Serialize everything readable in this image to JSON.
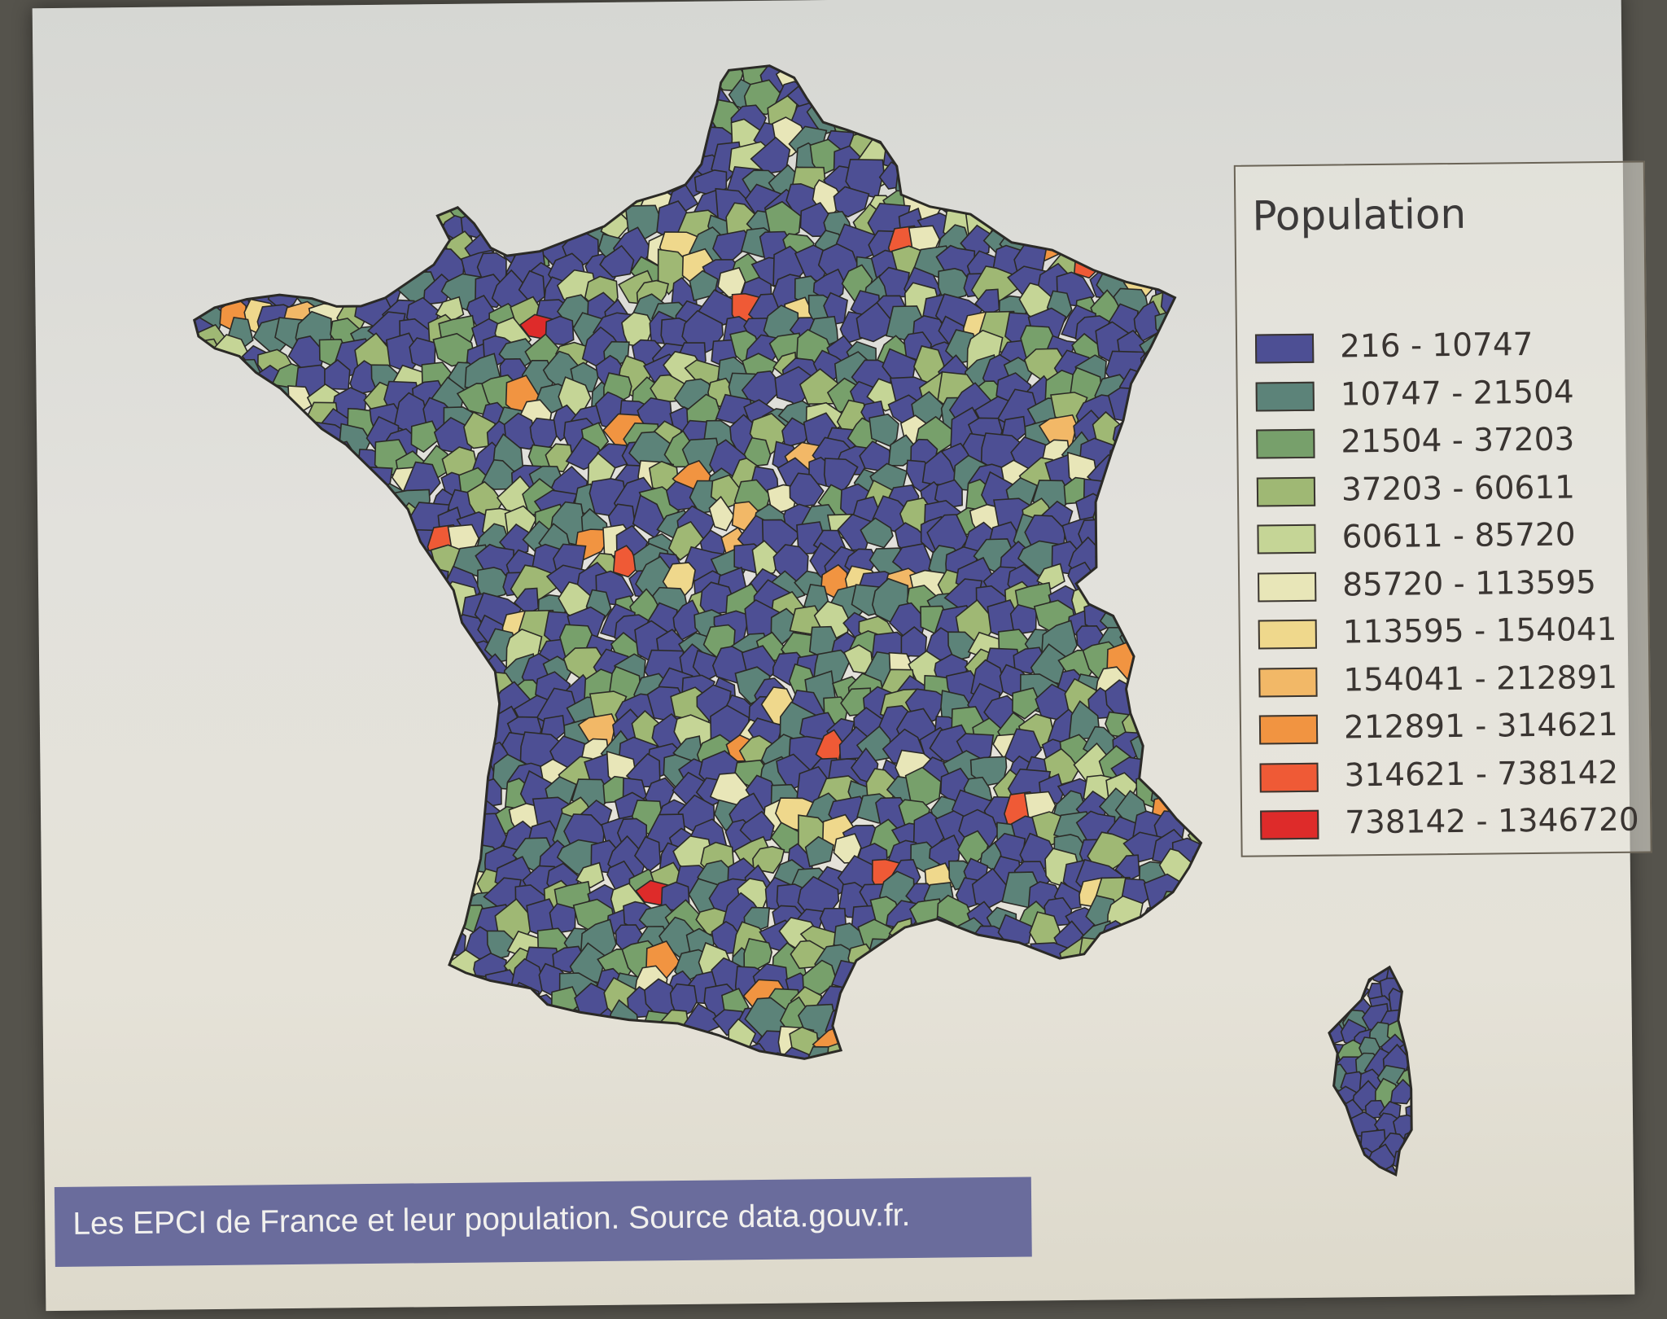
{
  "legend": {
    "title": "Population",
    "classes": [
      {
        "label": "216 - 10747",
        "color": "#4d4f94"
      },
      {
        "label": "10747 - 21504",
        "color": "#5c8379"
      },
      {
        "label": "21504 - 37203",
        "color": "#77a06b"
      },
      {
        "label": "37203 - 60611",
        "color": "#9fb874"
      },
      {
        "label": "60611 - 85720",
        "color": "#c5d596"
      },
      {
        "label": "85720 - 113595",
        "color": "#e8e6b8"
      },
      {
        "label": "113595 - 154041",
        "color": "#efd88c"
      },
      {
        "label": "154041 - 212891",
        "color": "#f2b867"
      },
      {
        "label": "212891 - 314621",
        "color": "#f19441"
      },
      {
        "label": "314621 - 738142",
        "color": "#ef5a36"
      },
      {
        "label": "738142 - 1346720",
        "color": "#de2b2a"
      }
    ]
  },
  "caption": "Les EPCI de France et leur population. Source data.gouv.fr.",
  "colors": {
    "page": "#e2e1dc",
    "caption_bg": "#6a6c9c",
    "borders": "#2b2a26"
  }
}
